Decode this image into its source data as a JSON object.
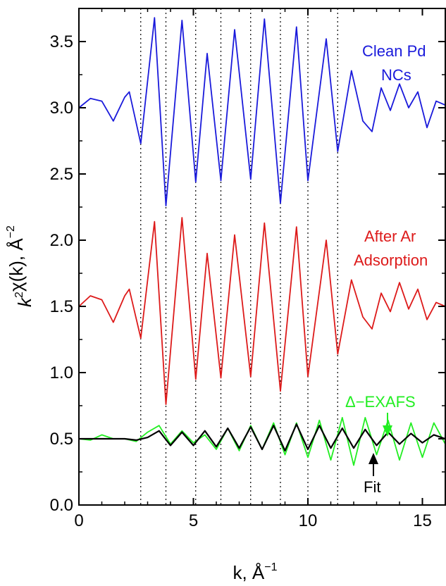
{
  "chart_data": {
    "type": "line",
    "xlabel": "k, Å",
    "xlabel_sup": "−1",
    "ylabel": "χ(k), Å",
    "ylabel_k": "k",
    "ylabel_k_sup": "2",
    "ylabel_sup": "−2",
    "xlim": [
      0,
      16
    ],
    "ylim": [
      0,
      3.75
    ],
    "x_ticks": [
      0,
      5,
      10,
      15
    ],
    "x_tick_labels": [
      "0",
      "5",
      "10",
      "15"
    ],
    "y_ticks": [
      0.0,
      0.5,
      1.0,
      1.5,
      2.0,
      2.5,
      3.0,
      3.5
    ],
    "y_tick_labels": [
      "0.0",
      "0.5",
      "1.0",
      "1.5",
      "2.0",
      "2.5",
      "3.0",
      "3.5"
    ],
    "grid": false,
    "vertical_dotted_lines_x": [
      2.7,
      3.8,
      5.1,
      6.2,
      7.5,
      8.8,
      10.0,
      11.3
    ],
    "colors": {
      "clean": "#1a1adb",
      "ar": "#dd1a1a",
      "delta": "#22ee22",
      "fit": "#000000"
    },
    "series": [
      {
        "key": "clean",
        "color": "#1a1adb",
        "x": [
          0.0,
          0.5,
          1.0,
          1.5,
          2.0,
          2.2,
          2.7,
          3.3,
          3.8,
          4.5,
          5.1,
          5.6,
          6.2,
          6.8,
          7.5,
          8.1,
          8.8,
          9.5,
          10.0,
          10.8,
          11.3,
          11.9,
          12.4,
          12.8,
          13.2,
          13.6,
          14.0,
          14.4,
          14.8,
          15.2,
          15.6,
          16.0
        ],
        "y": [
          3.0,
          3.07,
          3.05,
          2.9,
          3.08,
          3.12,
          2.73,
          3.68,
          2.26,
          3.66,
          2.44,
          3.41,
          2.45,
          3.59,
          2.46,
          3.67,
          2.28,
          3.61,
          2.45,
          3.52,
          2.67,
          3.28,
          2.9,
          2.82,
          3.15,
          2.98,
          3.18,
          3.0,
          3.12,
          2.85,
          3.05,
          3.02
        ]
      },
      {
        "key": "ar",
        "color": "#dd1a1a",
        "x": [
          0.0,
          0.5,
          1.0,
          1.5,
          2.0,
          2.2,
          2.7,
          3.3,
          3.8,
          4.5,
          5.1,
          5.6,
          6.2,
          6.8,
          7.5,
          8.1,
          8.8,
          9.5,
          10.0,
          10.8,
          11.3,
          11.9,
          12.4,
          12.8,
          13.2,
          13.6,
          14.0,
          14.4,
          14.8,
          15.2,
          15.6,
          16.0
        ],
        "y": [
          1.5,
          1.58,
          1.55,
          1.38,
          1.58,
          1.63,
          1.26,
          2.14,
          0.76,
          2.17,
          0.95,
          1.9,
          0.96,
          2.04,
          0.97,
          2.13,
          0.86,
          2.1,
          0.97,
          2.0,
          1.14,
          1.7,
          1.42,
          1.33,
          1.6,
          1.46,
          1.68,
          1.48,
          1.63,
          1.4,
          1.53,
          1.5
        ]
      },
      {
        "key": "delta",
        "color": "#22ee22",
        "x": [
          0.0,
          0.5,
          1.0,
          1.5,
          2.0,
          2.5,
          3.0,
          3.5,
          4.0,
          4.5,
          5.0,
          5.5,
          6.0,
          6.5,
          7.0,
          7.5,
          8.0,
          8.5,
          9.0,
          9.5,
          10.0,
          10.5,
          11.0,
          11.5,
          12.0,
          12.5,
          13.0,
          13.5,
          14.0,
          14.5,
          15.0,
          15.5,
          16.0
        ],
        "y": [
          0.5,
          0.49,
          0.53,
          0.5,
          0.5,
          0.48,
          0.55,
          0.6,
          0.46,
          0.56,
          0.47,
          0.53,
          0.42,
          0.58,
          0.41,
          0.6,
          0.42,
          0.62,
          0.38,
          0.62,
          0.36,
          0.64,
          0.34,
          0.66,
          0.3,
          0.66,
          0.38,
          0.64,
          0.34,
          0.62,
          0.36,
          0.62,
          0.46
        ]
      },
      {
        "key": "fit",
        "color": "#000000",
        "x": [
          0.0,
          1.0,
          2.0,
          2.5,
          3.0,
          3.5,
          4.0,
          4.5,
          5.0,
          5.5,
          6.0,
          6.5,
          7.0,
          7.5,
          8.0,
          8.5,
          9.0,
          9.5,
          10.0,
          10.5,
          11.0,
          11.5,
          12.0,
          12.5,
          13.0,
          13.5,
          14.0,
          14.5,
          15.0,
          15.5,
          16.0
        ],
        "y": [
          0.5,
          0.5,
          0.5,
          0.49,
          0.51,
          0.56,
          0.45,
          0.55,
          0.45,
          0.56,
          0.44,
          0.58,
          0.43,
          0.59,
          0.42,
          0.6,
          0.41,
          0.61,
          0.42,
          0.6,
          0.43,
          0.58,
          0.43,
          0.57,
          0.45,
          0.55,
          0.46,
          0.54,
          0.47,
          0.53,
          0.5
        ]
      }
    ],
    "annotations": {
      "clean_line1": "Clean Pd",
      "clean_line2": "NCs",
      "ar_line1": "After Ar",
      "ar_line2": "Adsorption",
      "delta": "Δ−EXAFS",
      "fit": "Fit"
    }
  }
}
